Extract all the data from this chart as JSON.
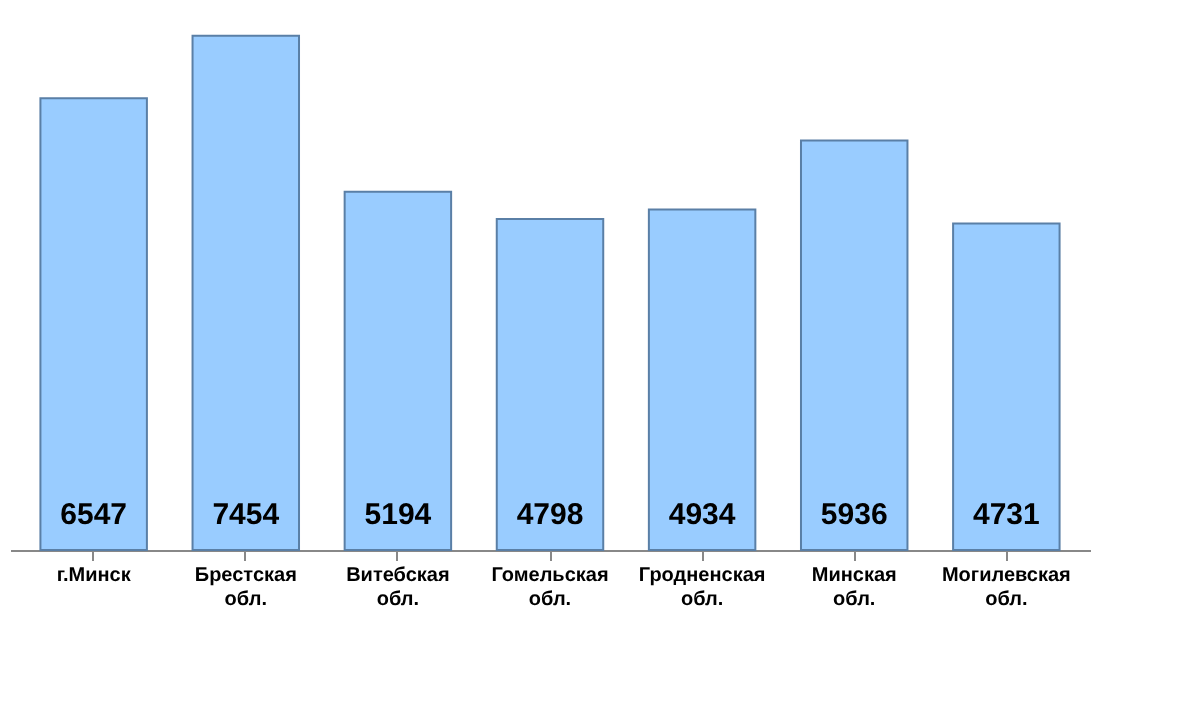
{
  "chart_data": {
    "type": "bar",
    "categories": [
      "г.Минск",
      "Брестская обл.",
      "Витебская обл.",
      "Гомельская обл.",
      "Гродненская обл.",
      "Минская обл.",
      "Могилевская обл."
    ],
    "values": [
      6547,
      7454,
      5194,
      4798,
      4934,
      5936,
      4731
    ],
    "color": "#99ccff",
    "data_labels": true
  }
}
